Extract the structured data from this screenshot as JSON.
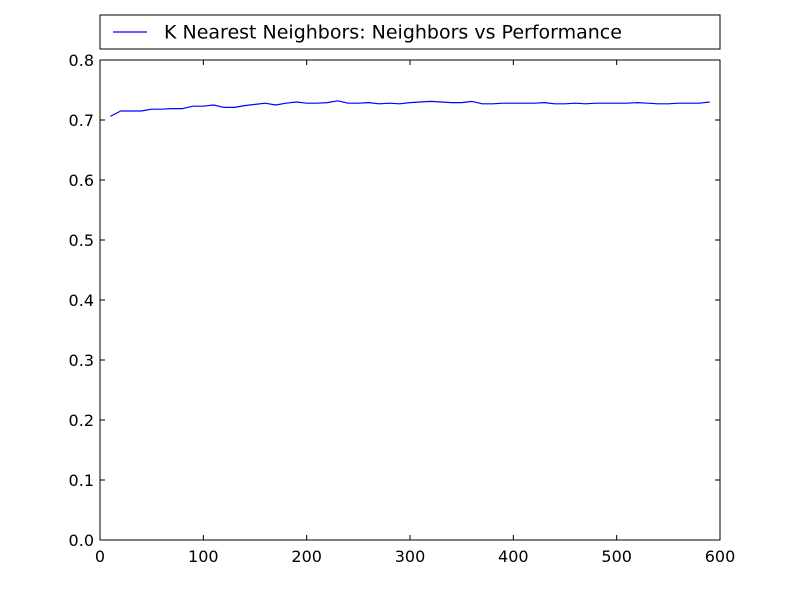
{
  "chart_data": {
    "type": "line",
    "legend_position": "top, above plot",
    "grid": false,
    "xlim": [
      0,
      600
    ],
    "ylim": [
      0.0,
      0.8
    ],
    "x_ticks": [
      0,
      100,
      200,
      300,
      400,
      500,
      600
    ],
    "x_tick_labels": [
      "0",
      "100",
      "200",
      "300",
      "400",
      "500",
      "600"
    ],
    "y_ticks": [
      0.0,
      0.1,
      0.2,
      0.3,
      0.4,
      0.5,
      0.6,
      0.7,
      0.8
    ],
    "y_tick_labels": [
      "0.0",
      "0.1",
      "0.2",
      "0.3",
      "0.4",
      "0.5",
      "0.6",
      "0.7",
      "0.8"
    ],
    "series": [
      {
        "name": "K Nearest Neighbors: Neighbors vs Performance",
        "color": "#0000ff",
        "x": [
          10,
          20,
          30,
          40,
          50,
          60,
          70,
          80,
          90,
          100,
          110,
          120,
          130,
          140,
          150,
          160,
          170,
          180,
          190,
          200,
          210,
          220,
          230,
          240,
          250,
          260,
          270,
          280,
          290,
          300,
          310,
          320,
          330,
          340,
          350,
          360,
          370,
          380,
          390,
          400,
          410,
          420,
          430,
          440,
          450,
          460,
          470,
          480,
          490,
          500,
          510,
          520,
          530,
          540,
          550,
          560,
          570,
          580,
          590
        ],
        "y": [
          0.706,
          0.715,
          0.715,
          0.715,
          0.718,
          0.718,
          0.719,
          0.719,
          0.723,
          0.723,
          0.725,
          0.721,
          0.721,
          0.724,
          0.726,
          0.728,
          0.725,
          0.728,
          0.73,
          0.728,
          0.728,
          0.729,
          0.732,
          0.728,
          0.728,
          0.729,
          0.727,
          0.728,
          0.727,
          0.729,
          0.73,
          0.731,
          0.73,
          0.729,
          0.729,
          0.731,
          0.727,
          0.727,
          0.728,
          0.728,
          0.728,
          0.728,
          0.729,
          0.727,
          0.727,
          0.728,
          0.727,
          0.728,
          0.728,
          0.728,
          0.728,
          0.729,
          0.728,
          0.727,
          0.727,
          0.728,
          0.728,
          0.728,
          0.73
        ]
      }
    ]
  }
}
